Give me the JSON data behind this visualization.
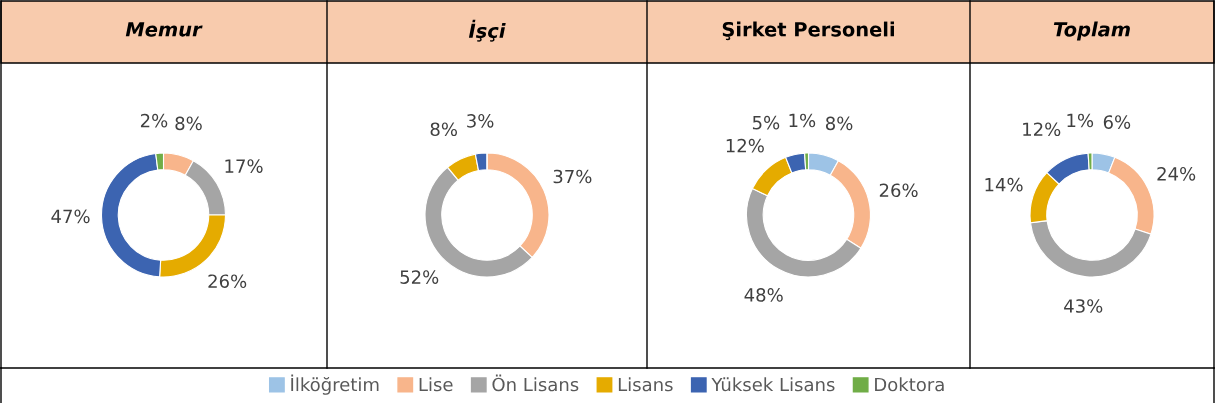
{
  "chart_data": [
    {
      "type": "donut",
      "title": "Memur",
      "categories": [
        "İlköğretim",
        "Lise",
        "Ön Lisans",
        "Lisans",
        "Yüksek Lisans",
        "Doktora"
      ],
      "values": [
        0,
        8,
        17,
        26,
        47,
        2
      ],
      "colors": [
        "#9dc3e6",
        "#f8b58b",
        "#a5a5a5",
        "#e5ab00",
        "#3c64b1",
        "#70ad47"
      ],
      "value_labels": [
        null,
        "8%",
        "17%",
        "26%",
        "47%",
        "2%"
      ],
      "legend": "bottom"
    },
    {
      "type": "donut",
      "title": "İşçi",
      "categories": [
        null,
        null,
        null,
        null,
        null,
        null
      ],
      "values": [
        0,
        37,
        52,
        8,
        3,
        0
      ],
      "colors": [
        "#9dc3e6",
        "#f8b58b",
        "#a5a5a5",
        "#e5ab00",
        "#3c64b1",
        "#70ad47"
      ],
      "value_labels": [
        null,
        "37%",
        "52%",
        "8%",
        "3%",
        null
      ]
    },
    {
      "type": "donut",
      "title": "Şirket Personeli",
      "categories": [
        null,
        null,
        null,
        null,
        null,
        null
      ],
      "values": [
        8,
        26,
        48,
        12,
        5,
        1
      ],
      "colors": [
        "#9dc3e6",
        "#f8b58b",
        "#a5a5a5",
        "#e5ab00",
        "#3c64b1",
        "#70ad47"
      ],
      "value_labels": [
        "8%",
        "26%",
        "48%",
        "12%",
        "5%",
        "1%"
      ]
    },
    {
      "type": "donut",
      "title": "Toplam",
      "categories": [
        null,
        null,
        null,
        null,
        null,
        null
      ],
      "values": [
        6,
        24,
        43,
        14,
        12,
        1
      ],
      "colors": [
        "#9dc3e6",
        "#f8b58b",
        "#a5a5a5",
        "#e5ab00",
        "#3c64b1",
        "#70ad47"
      ],
      "value_labels": [
        "6%",
        "24%",
        "43%",
        "14%",
        "12%",
        "1%"
      ]
    }
  ]
}
